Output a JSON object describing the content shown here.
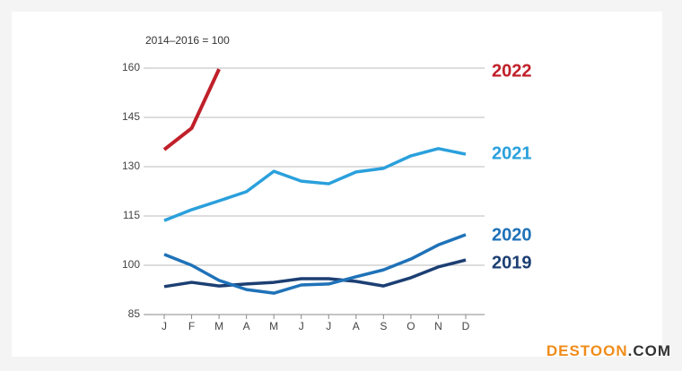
{
  "chart_data": {
    "type": "line",
    "subtitle": "2014–2016 = 100",
    "categories": [
      "J",
      "F",
      "M",
      "A",
      "M",
      "J",
      "J",
      "A",
      "S",
      "O",
      "N",
      "D"
    ],
    "series": [
      {
        "name": "2019",
        "color": "#1c3f73",
        "values": [
          93.5,
          94.8,
          93.7,
          94.3,
          94.8,
          95.9,
          95.9,
          95.1,
          93.7,
          96.2,
          99.5,
          101.6
        ]
      },
      {
        "name": "2020",
        "color": "#1f72b8",
        "values": [
          103.3,
          100,
          95.4,
          92.6,
          91.5,
          94,
          94.3,
          96.5,
          98.6,
          101.9,
          106.2,
          109.3
        ]
      },
      {
        "name": "2021",
        "color": "#2aa0dc",
        "values": [
          113.6,
          116.9,
          119.6,
          122.4,
          128.6,
          125.6,
          124.8,
          128.4,
          129.5,
          133.3,
          135.5,
          133.8
        ]
      },
      {
        "name": "2022",
        "color": "#c0202a",
        "values": [
          135.2,
          141.7,
          159.7,
          null,
          null,
          null,
          null,
          null,
          null,
          null,
          null,
          null
        ]
      }
    ],
    "ylim": [
      85,
      160
    ],
    "yticks": [
      85,
      100,
      115,
      130,
      145,
      160
    ],
    "grid": true
  },
  "watermark": {
    "brand": "DESTOON",
    "suffix": ".COM"
  }
}
